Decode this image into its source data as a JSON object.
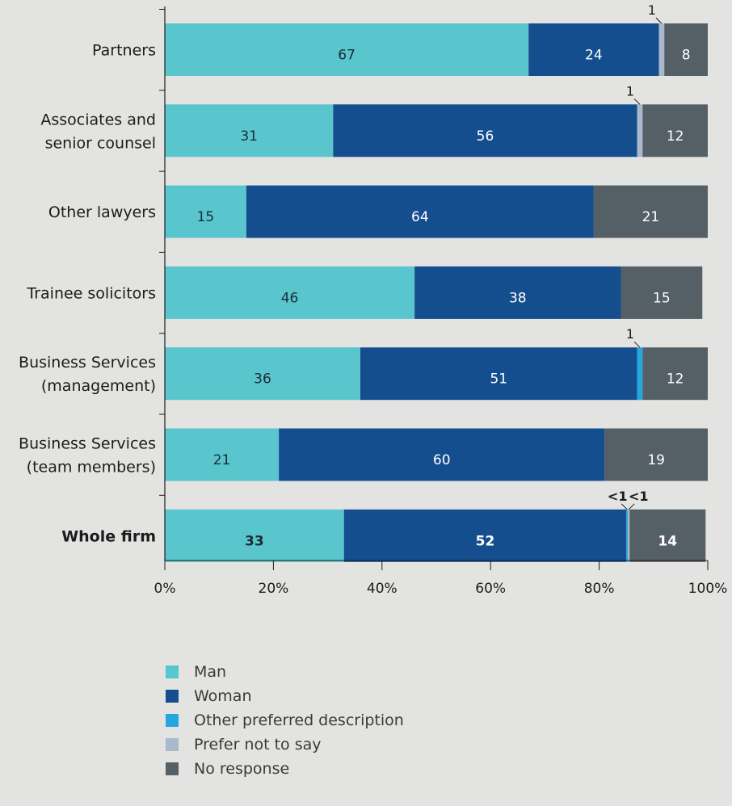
{
  "chart_data": {
    "type": "bar",
    "orientation": "horizontal",
    "stacked": true,
    "categories": [
      "Partners",
      "Associates and\nsenior counsel",
      "Other lawyers",
      "Trainee solicitors",
      "Business Services\n(management)",
      "Business Services\n(team members)",
      "Whole firm"
    ],
    "bold_categories": [
      "Whole firm"
    ],
    "series": [
      {
        "name": "Man",
        "color": "#58c6cc",
        "values": [
          67,
          31,
          15,
          46,
          36,
          21,
          33
        ],
        "labels": [
          "67",
          "31",
          "15",
          "46",
          "36",
          "21",
          "33"
        ]
      },
      {
        "name": "Woman",
        "color": "#154e8f",
        "values": [
          24,
          56,
          64,
          38,
          51,
          60,
          52
        ],
        "labels": [
          "24",
          "56",
          "64",
          "38",
          "51",
          "60",
          "52"
        ]
      },
      {
        "name": "Other preferred description",
        "color": "#25a6e0",
        "values": [
          0,
          0,
          0,
          0,
          1,
          0,
          0.3
        ],
        "labels": [
          "",
          "",
          "",
          "",
          "1",
          "",
          "<1"
        ]
      },
      {
        "name": "Prefer not to say",
        "color": "#a9b9cc",
        "values": [
          1,
          1,
          0,
          0,
          0,
          0,
          0.3
        ],
        "labels": [
          "1",
          "1",
          "",
          "",
          "",
          "",
          "<1"
        ]
      },
      {
        "name": "No response",
        "color": "#555f66",
        "values": [
          8,
          12,
          21,
          15,
          12,
          19,
          14
        ],
        "labels": [
          "8",
          "12",
          "21",
          "15",
          "12",
          "19",
          "14"
        ]
      }
    ],
    "xlim": [
      0,
      100
    ],
    "xticks": [
      "0%",
      "20%",
      "40%",
      "60%",
      "80%",
      "100%"
    ],
    "grid": false,
    "legend_position": "bottom"
  }
}
